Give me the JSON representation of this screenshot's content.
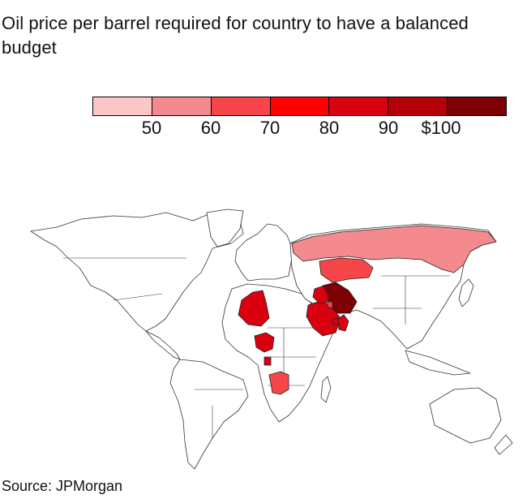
{
  "title": "Oil price per barrel required for country to have a balanced budget",
  "legend": {
    "colors": [
      "#fdc7c9",
      "#f48a8e",
      "#f6464a",
      "#fe0000",
      "#d90010",
      "#b50008",
      "#7d0004"
    ],
    "labels": [
      "50",
      "60",
      "70",
      "80",
      "90",
      "$100"
    ]
  },
  "source": "Source: JPMorgan",
  "map_data": {
    "type": "choropleth",
    "countries": [
      {
        "name": "Russia",
        "color": "#f48a8e"
      },
      {
        "name": "Kazakhstan",
        "color": "#f6464a"
      },
      {
        "name": "Algeria",
        "color": "#d90010"
      },
      {
        "name": "Nigeria",
        "color": "#d90010"
      },
      {
        "name": "Angola",
        "color": "#f6464a"
      },
      {
        "name": "Gabon",
        "color": "#d90010"
      },
      {
        "name": "Saudi Arabia",
        "color": "#d90010"
      },
      {
        "name": "Iraq",
        "color": "#d90010"
      },
      {
        "name": "Iran",
        "color": "#7d0004"
      },
      {
        "name": "Kuwait",
        "color": "#f6464a"
      },
      {
        "name": "Oman",
        "color": "#d90010"
      },
      {
        "name": "UAE",
        "color": "#d90010"
      }
    ]
  }
}
